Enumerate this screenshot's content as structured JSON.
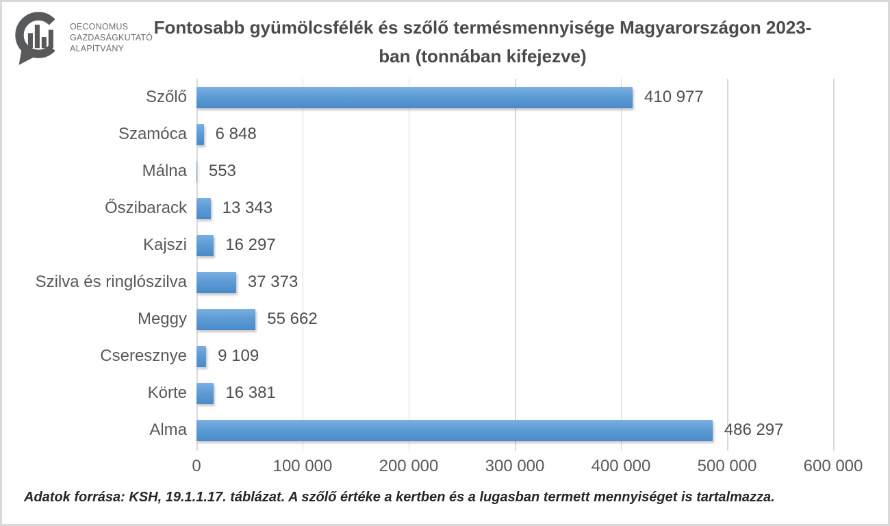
{
  "logo": {
    "org_lines": [
      "OECONOMUS",
      "GAZDASÁGKUTATÓ",
      "ALAPÍTVÁNY"
    ]
  },
  "header": {
    "title_line1": "Fontosabb gyümölcsfélék és szőlő termésmennyisége Magyarországon 2023-",
    "title_line2": "ban (tonnában kifejezve)"
  },
  "chart_data": {
    "type": "bar",
    "orientation": "horizontal",
    "title": "Fontosabb gyümölcsfélék és szőlő termésmennyisége Magyarországon 2023-ban (tonnában kifejezve)",
    "categories": [
      "Szőlő",
      "Szamóca",
      "Málna",
      "Őszibarack",
      "Kajszi",
      "Szilva és ringlószilva",
      "Meggy",
      "Cseresznye",
      "Körte",
      "Alma"
    ],
    "values": [
      410977,
      6848,
      553,
      13343,
      16297,
      37373,
      55662,
      9109,
      16381,
      486297
    ],
    "value_labels": [
      "410 977",
      "6 848",
      "553",
      "13 343",
      "16 297",
      "37 373",
      "55 662",
      "9 109",
      "16 381",
      "486 297"
    ],
    "xlabel": "",
    "ylabel": "",
    "xlim": [
      0,
      600000
    ],
    "x_ticks": [
      0,
      100000,
      200000,
      300000,
      400000,
      500000,
      600000
    ],
    "x_tick_labels": [
      "0",
      "100 000",
      "200 000",
      "300 000",
      "400 000",
      "500 000",
      "600 000"
    ],
    "grid": true,
    "legend": false,
    "unit": "tonna"
  },
  "footer": {
    "source_note": "Adatok forrása: KSH, 19.1.1.17. táblázat. A szőlő értéke a kertben és a lugasban termett mennyiséget is tartalmazza."
  },
  "colors": {
    "bar": "#5B9BD5",
    "gridline": "#D9D9D9",
    "category_text": "#595959",
    "value_text": "#4D4D4D",
    "title_text": "#4A4A4A",
    "footer_text": "#262626",
    "logo_gray": "#58595B"
  }
}
